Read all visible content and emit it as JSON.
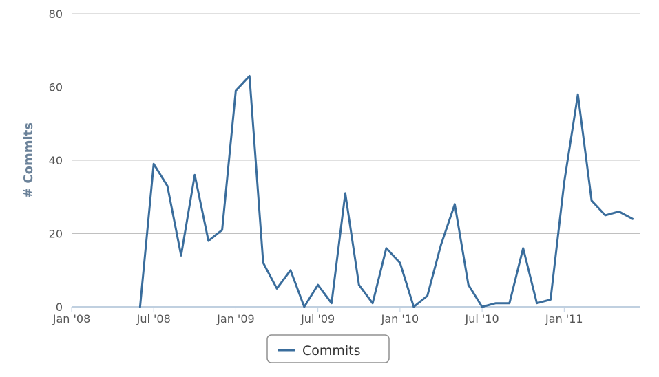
{
  "chart_data": {
    "type": "line",
    "ylabel": "# Commits",
    "ylim": [
      0,
      80
    ],
    "yticks": [
      0,
      20,
      40,
      60,
      80
    ],
    "x_tick_labels": [
      "Jan '08",
      "Jul '08",
      "Jan '09",
      "Jul '09",
      "Jan '10",
      "Jul '10",
      "Jan '11"
    ],
    "x_tick_months": [
      0,
      6,
      12,
      18,
      24,
      30,
      36
    ],
    "x_range_months": [
      0,
      41.3
    ],
    "grid": true,
    "legend_position": "bottom-center",
    "series": [
      {
        "name": "Commits",
        "color": "#3a6d9c",
        "x_months": [
          5,
          6,
          7,
          8,
          9,
          10,
          11,
          12,
          13,
          14,
          15,
          16,
          17,
          18,
          19,
          20,
          21,
          22,
          23,
          24,
          25,
          26,
          27,
          28,
          29,
          30,
          31,
          32,
          33,
          34,
          35,
          36,
          37,
          38,
          39,
          40,
          41
        ],
        "values": [
          0,
          39,
          33,
          14,
          36,
          18,
          21,
          59,
          63,
          12,
          5,
          10,
          0,
          6,
          1,
          31,
          6,
          1,
          16,
          12,
          0,
          3,
          17,
          28,
          6,
          0,
          1,
          1,
          16,
          1,
          2,
          34,
          58,
          29,
          25,
          26,
          24
        ]
      }
    ]
  }
}
